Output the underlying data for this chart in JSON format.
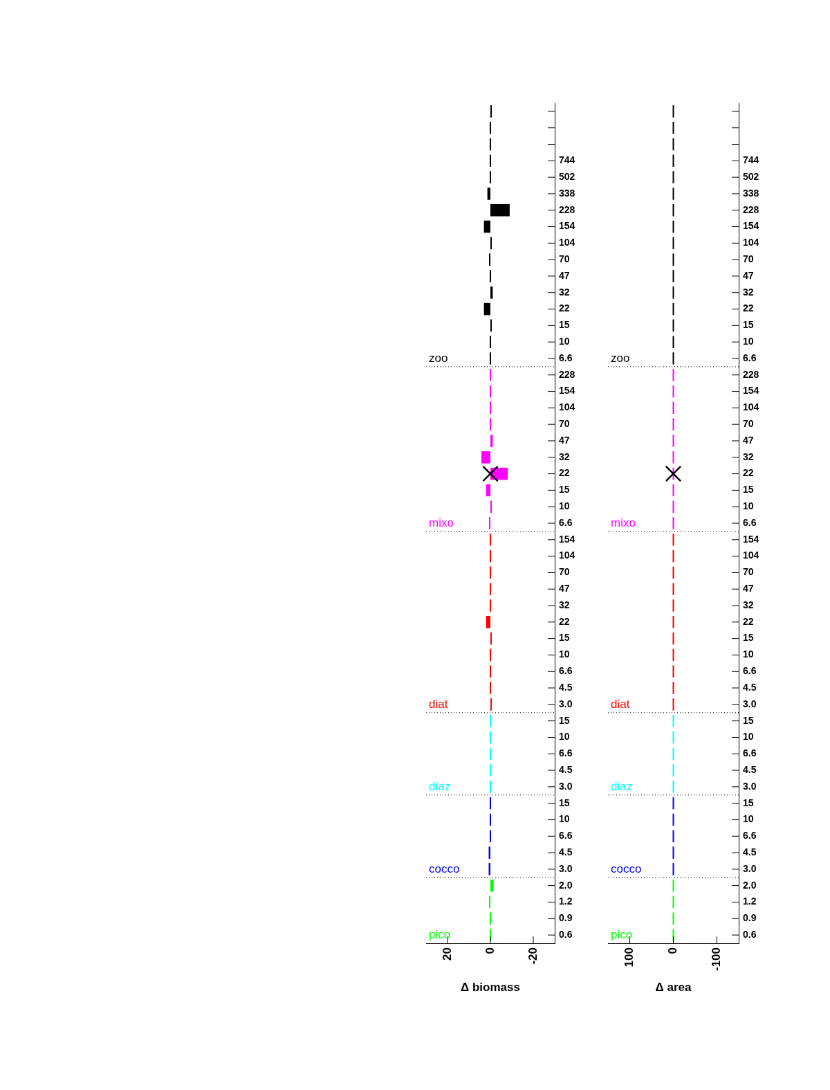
{
  "chart_data": [
    {
      "type": "bar",
      "orientation": "horizontal",
      "xlabel": "Δ biomass",
      "xlim": [
        30,
        -30
      ],
      "xticks": [
        20,
        0,
        -20
      ],
      "categories": [
        null,
        null,
        null,
        "744",
        "502",
        "338",
        "228",
        "154",
        "104",
        "70",
        "47",
        "32",
        "22",
        "15",
        "10",
        "6.6",
        "228",
        "154",
        "104",
        "70",
        "47",
        "32",
        "22",
        "15",
        "10",
        "6.6",
        "154",
        "104",
        "70",
        "47",
        "32",
        "22",
        "15",
        "10",
        "6.6",
        "4.5",
        "3.0",
        "15",
        "10",
        "6.6",
        "4.5",
        "3.0",
        "15",
        "10",
        "6.6",
        "4.5",
        "3.0",
        "2.0",
        "1.2",
        "0.9",
        "0.6"
      ],
      "series": [
        {
          "name": "pico",
          "color": "#00ff00",
          "values": [
            null,
            null,
            null,
            null,
            null,
            null,
            null,
            null,
            null,
            null,
            null,
            null,
            null,
            null,
            null,
            null,
            null,
            null,
            null,
            null,
            null,
            null,
            null,
            null,
            null,
            null,
            null,
            null,
            null,
            null,
            null,
            null,
            null,
            null,
            null,
            null,
            null,
            null,
            null,
            null,
            null,
            null,
            null,
            null,
            null,
            null,
            null,
            -1.5,
            0.4,
            0,
            0
          ]
        },
        {
          "name": "cocco",
          "color": "#0000ff",
          "values": [
            null,
            null,
            null,
            null,
            null,
            null,
            null,
            null,
            null,
            null,
            null,
            null,
            null,
            null,
            null,
            null,
            null,
            null,
            null,
            null,
            null,
            null,
            null,
            null,
            null,
            null,
            null,
            null,
            null,
            null,
            null,
            null,
            null,
            null,
            null,
            null,
            null,
            null,
            null,
            null,
            null,
            null,
            0,
            0,
            0,
            0.8,
            0.8,
            null,
            null,
            null,
            null
          ]
        },
        {
          "name": "diaz",
          "color": "#00ffff",
          "values": [
            null,
            null,
            null,
            null,
            null,
            null,
            null,
            null,
            null,
            null,
            null,
            null,
            null,
            null,
            null,
            null,
            null,
            null,
            null,
            null,
            null,
            null,
            null,
            null,
            null,
            null,
            null,
            null,
            null,
            null,
            null,
            null,
            null,
            null,
            null,
            null,
            null,
            0,
            0,
            0,
            0,
            0,
            null,
            null,
            null,
            null,
            null,
            null,
            null,
            null,
            null
          ]
        },
        {
          "name": "diat",
          "color": "#ff0000",
          "values": [
            null,
            null,
            null,
            null,
            null,
            null,
            null,
            null,
            null,
            null,
            null,
            null,
            null,
            null,
            null,
            null,
            null,
            null,
            null,
            null,
            null,
            null,
            null,
            null,
            null,
            null,
            0,
            0,
            0,
            0,
            0,
            2,
            -0.5,
            0,
            0,
            0,
            -0.5,
            null,
            null,
            null,
            null,
            null,
            null,
            null,
            null,
            null,
            null,
            null,
            null,
            null,
            null
          ]
        },
        {
          "name": "mixo",
          "color": "#ff00ff",
          "values": [
            null,
            null,
            null,
            null,
            null,
            null,
            null,
            null,
            null,
            null,
            null,
            null,
            null,
            null,
            null,
            null,
            0,
            0,
            0,
            0,
            -1.1,
            4.2,
            -8.1,
            2,
            -0.5,
            0.4,
            null,
            null,
            null,
            null,
            null,
            null,
            null,
            null,
            null,
            null,
            null,
            null,
            null,
            null,
            null,
            null,
            null,
            null,
            null,
            null,
            null,
            null,
            null,
            null,
            null
          ]
        },
        {
          "name": "zoo",
          "color": "#000000",
          "values": [
            -0.5,
            0,
            0,
            0,
            0,
            1.4,
            -9,
            3,
            -0.6,
            0.4,
            0,
            -1.1,
            3,
            -0.5,
            0,
            0,
            null,
            null,
            null,
            null,
            null,
            null,
            null,
            null,
            null,
            null,
            null,
            null,
            null,
            null,
            null,
            null,
            null,
            null,
            null,
            null,
            null,
            null,
            null,
            null,
            null,
            null,
            null,
            null,
            null,
            null,
            null,
            null,
            null,
            null,
            null
          ]
        },
        {
          "type": "scatter",
          "marker": "cross",
          "color": "#000000",
          "values": [
            null,
            null,
            null,
            null,
            null,
            null,
            null,
            null,
            null,
            null,
            null,
            null,
            null,
            null,
            null,
            null,
            null,
            null,
            null,
            null,
            null,
            null,
            0,
            null,
            null,
            null,
            null,
            null,
            null,
            null,
            null,
            null,
            null,
            null,
            null,
            null,
            null,
            null,
            null,
            null,
            null,
            null,
            null,
            null,
            null,
            null,
            null,
            null,
            null,
            null,
            null
          ]
        }
      ]
    },
    {
      "type": "bar",
      "orientation": "horizontal",
      "xlabel": "Δ area",
      "xlim": [
        150,
        -150
      ],
      "xticks": [
        100,
        0,
        -100
      ],
      "categories": [
        null,
        null,
        null,
        "744",
        "502",
        "338",
        "228",
        "154",
        "104",
        "70",
        "47",
        "32",
        "22",
        "15",
        "10",
        "6.6",
        "228",
        "154",
        "104",
        "70",
        "47",
        "32",
        "22",
        "15",
        "10",
        "6.6",
        "154",
        "104",
        "70",
        "47",
        "32",
        "22",
        "15",
        "10",
        "6.6",
        "4.5",
        "3.0",
        "15",
        "10",
        "6.6",
        "4.5",
        "3.0",
        "15",
        "10",
        "6.6",
        "4.5",
        "3.0",
        "2.0",
        "1.2",
        "0.9",
        "0.6"
      ],
      "series": [
        {
          "name": "pico",
          "color": "#00ff00",
          "values": [
            null,
            null,
            null,
            null,
            null,
            null,
            null,
            null,
            null,
            null,
            null,
            null,
            null,
            null,
            null,
            null,
            null,
            null,
            null,
            null,
            null,
            null,
            null,
            null,
            null,
            null,
            null,
            null,
            null,
            null,
            null,
            null,
            null,
            null,
            null,
            null,
            null,
            null,
            null,
            null,
            null,
            null,
            null,
            null,
            null,
            null,
            null,
            0,
            0,
            0,
            0
          ]
        },
        {
          "name": "cocco",
          "color": "#0000ff",
          "values": [
            null,
            null,
            null,
            null,
            null,
            null,
            null,
            null,
            null,
            null,
            null,
            null,
            null,
            null,
            null,
            null,
            null,
            null,
            null,
            null,
            null,
            null,
            null,
            null,
            null,
            null,
            null,
            null,
            null,
            null,
            null,
            null,
            null,
            null,
            null,
            null,
            null,
            null,
            null,
            null,
            null,
            null,
            0,
            0,
            0,
            0,
            0,
            null,
            null,
            null,
            null
          ]
        },
        {
          "name": "diaz",
          "color": "#00ffff",
          "values": [
            null,
            null,
            null,
            null,
            null,
            null,
            null,
            null,
            null,
            null,
            null,
            null,
            null,
            null,
            null,
            null,
            null,
            null,
            null,
            null,
            null,
            null,
            null,
            null,
            null,
            null,
            null,
            null,
            null,
            null,
            null,
            null,
            null,
            null,
            null,
            null,
            null,
            0,
            0,
            0,
            0,
            0,
            null,
            null,
            null,
            null,
            null,
            null,
            null,
            null,
            null
          ]
        },
        {
          "name": "diat",
          "color": "#ff0000",
          "values": [
            null,
            null,
            null,
            null,
            null,
            null,
            null,
            null,
            null,
            null,
            null,
            null,
            null,
            null,
            null,
            null,
            null,
            null,
            null,
            null,
            null,
            null,
            null,
            null,
            null,
            null,
            0,
            0,
            0,
            0,
            0,
            0,
            0,
            0,
            0,
            0,
            0,
            null,
            null,
            null,
            null,
            null,
            null,
            null,
            null,
            null,
            null,
            null,
            null,
            null,
            null
          ]
        },
        {
          "name": "mixo",
          "color": "#ff00ff",
          "values": [
            null,
            null,
            null,
            null,
            null,
            null,
            null,
            null,
            null,
            null,
            null,
            null,
            null,
            null,
            null,
            null,
            0,
            0,
            0,
            0,
            0,
            0,
            0,
            0,
            0,
            0,
            null,
            null,
            null,
            null,
            null,
            null,
            null,
            null,
            null,
            null,
            null,
            null,
            null,
            null,
            null,
            null,
            null,
            null,
            null,
            null,
            null,
            null,
            null,
            null,
            null
          ]
        },
        {
          "name": "zoo",
          "color": "#000000",
          "values": [
            0,
            0,
            0,
            0,
            0,
            0,
            0,
            0,
            0,
            0,
            0,
            0,
            0,
            0,
            0,
            0,
            null,
            null,
            null,
            null,
            null,
            null,
            null,
            null,
            null,
            null,
            null,
            null,
            null,
            null,
            null,
            null,
            null,
            null,
            null,
            null,
            null,
            null,
            null,
            null,
            null,
            null,
            null,
            null,
            null,
            null,
            null,
            null,
            null,
            null,
            null
          ]
        },
        {
          "type": "scatter",
          "marker": "cross",
          "color": "#000000",
          "values": [
            null,
            null,
            null,
            null,
            null,
            null,
            null,
            null,
            null,
            null,
            null,
            null,
            null,
            null,
            null,
            null,
            null,
            null,
            null,
            null,
            null,
            null,
            0,
            null,
            null,
            null,
            null,
            null,
            null,
            null,
            null,
            null,
            null,
            null,
            null,
            null,
            null,
            null,
            null,
            null,
            null,
            null,
            null,
            null,
            null,
            null,
            null,
            null,
            null,
            null,
            null
          ]
        }
      ]
    }
  ]
}
